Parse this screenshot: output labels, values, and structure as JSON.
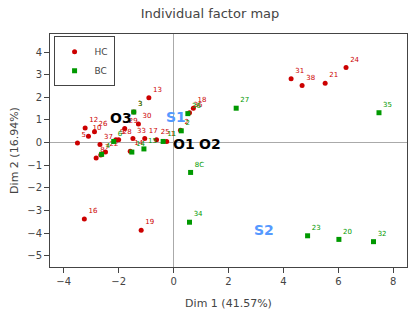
{
  "chart_data": {
    "type": "scatter",
    "title": "Individual factor map",
    "xlabel": "Dim 1 (41.57%)",
    "ylabel": "Dim 2 (16.94%)",
    "xlim": [
      -4.5,
      8.5
    ],
    "ylim": [
      -5.5,
      4.8
    ],
    "xticks": [
      -4,
      -2,
      0,
      2,
      4,
      6,
      8
    ],
    "yticks": [
      -5,
      -4,
      -3,
      -2,
      -1,
      0,
      1,
      2,
      3,
      4
    ],
    "grid": false,
    "legend": "upper left",
    "series": [
      {
        "name": "HC",
        "color": "#cc0000",
        "marker": "circle",
        "labels": [
          "1",
          "2",
          "3",
          "5",
          "7",
          "8",
          "9",
          "10",
          "12",
          "13",
          "14",
          "16",
          "17",
          "18",
          "19",
          "21",
          "22",
          "24",
          "25",
          "26",
          "28",
          "29",
          "30",
          "31",
          "33",
          "36",
          "37",
          "38"
        ],
        "x": [
          -0.25,
          0.25,
          -1.45,
          -3.5,
          -2.65,
          -2.82,
          -2.1,
          -3.1,
          -3.22,
          -0.9,
          -1.58,
          -3.25,
          -1.05,
          0.72,
          -1.18,
          5.52,
          -2.48,
          6.28,
          -0.62,
          -2.88,
          -2.0,
          -1.78,
          -1.28,
          4.28,
          -1.48,
          0.58,
          -2.68,
          4.68
        ],
        "values": [
          0.05,
          0.55,
          1.35,
          -0.02,
          -0.55,
          -0.68,
          0.12,
          0.28,
          0.65,
          1.98,
          -0.38,
          -3.38,
          0.18,
          1.52,
          -3.88,
          2.62,
          -0.42,
          3.32,
          0.12,
          0.48,
          0.12,
          0.62,
          0.82,
          2.82,
          0.18,
          1.32,
          -0.08,
          2.52
        ]
      },
      {
        "name": "BC",
        "color": "#009900",
        "marker": "square",
        "labels": [
          "2",
          "4",
          "6",
          "11",
          "14",
          "15",
          "20",
          "23",
          "27",
          "32",
          "34",
          "35",
          "3",
          "8C",
          "36"
        ],
        "x": [
          0.28,
          -2.62,
          -2.18,
          -0.38,
          -1.52,
          -1.08,
          6.02,
          4.88,
          2.28,
          7.28,
          0.58,
          7.48,
          -1.45,
          0.62,
          0.52
        ],
        "values": [
          0.52,
          -0.52,
          0.05,
          0.05,
          -0.42,
          -0.28,
          -4.28,
          -4.12,
          1.52,
          -4.38,
          -3.52,
          1.32,
          1.35,
          -1.32,
          1.28
        ]
      }
    ],
    "annotations": [
      {
        "text": "O3",
        "x": -2.4,
        "y": 1.1,
        "color": "black"
      },
      {
        "text": "O1",
        "x": -0.1,
        "y": -0.05,
        "color": "black"
      },
      {
        "text": "O2",
        "x": 0.85,
        "y": -0.05,
        "color": "black"
      },
      {
        "text": "S1",
        "x": -0.35,
        "y": 1.12,
        "color": "#5599ff"
      },
      {
        "text": "S2",
        "x": 2.85,
        "y": -3.85,
        "color": "#5599ff"
      }
    ]
  }
}
